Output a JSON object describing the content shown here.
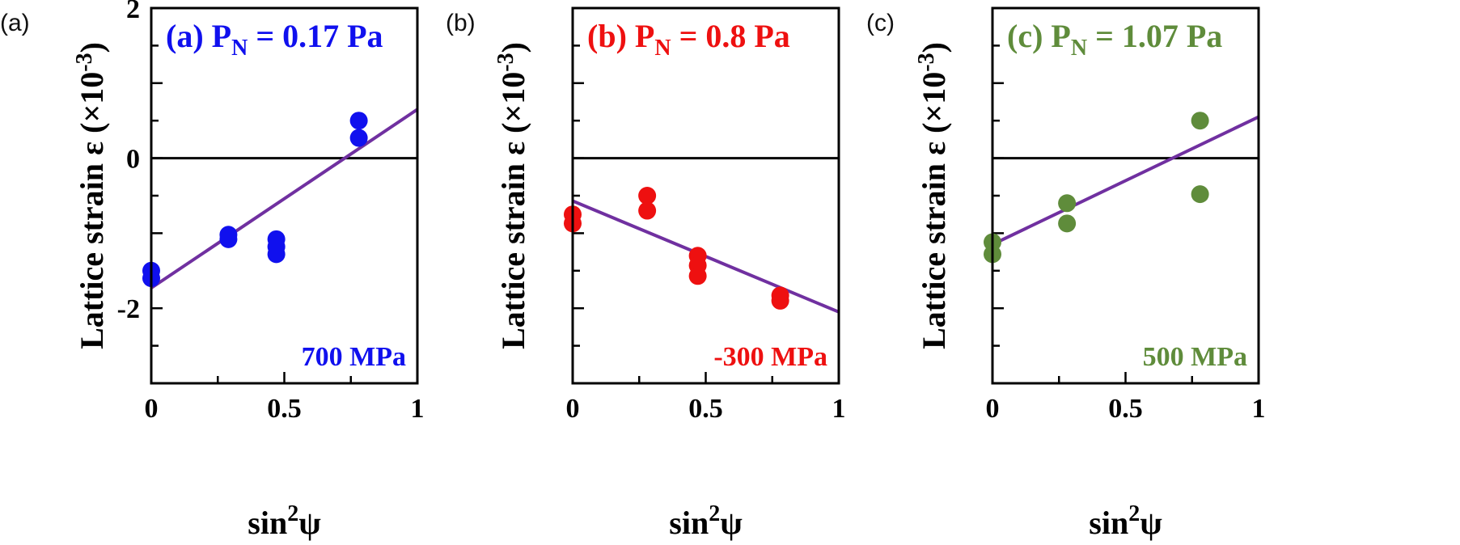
{
  "y_axis_label": "Lattice strain ε (×10",
  "y_axis_exponent": "-3",
  "y_axis_label_close": ")",
  "x_axis_label_prefix": "sin",
  "x_axis_label_exponent": "2",
  "x_axis_label_suffix": "ψ",
  "fit_line_color": "#7030a0",
  "chart_data": [
    {
      "type": "scatter",
      "panel_label": "(a)",
      "title_prefix": "(a) P",
      "title_subscript": "N",
      "title_suffix": " = 0.17 Pa",
      "stress_label": "700 MPa",
      "color": "#1010ee",
      "xlim": [
        0,
        1
      ],
      "ylim": [
        -3,
        2
      ],
      "x_ticks": [
        "0",
        "0.5",
        "1"
      ],
      "y_ticks": [
        "2",
        "0",
        "-2"
      ],
      "points": [
        {
          "x": 0.0,
          "y": -1.5
        },
        {
          "x": 0.0,
          "y": -1.6
        },
        {
          "x": 0.29,
          "y": -1.02
        },
        {
          "x": 0.29,
          "y": -1.08
        },
        {
          "x": 0.47,
          "y": -1.08
        },
        {
          "x": 0.47,
          "y": -1.18
        },
        {
          "x": 0.47,
          "y": -1.28
        },
        {
          "x": 0.78,
          "y": 0.5
        },
        {
          "x": 0.78,
          "y": 0.27
        }
      ],
      "fit_line": {
        "x": [
          0,
          1
        ],
        "y": [
          -1.73,
          0.65
        ]
      }
    },
    {
      "type": "scatter",
      "panel_label": "(b)",
      "title_prefix": "(b) P",
      "title_subscript": "N",
      "title_suffix": " = 0.8 Pa",
      "stress_label": "-300 MPa",
      "color": "#ee1010",
      "xlim": [
        0,
        1
      ],
      "ylim": [
        -3,
        2
      ],
      "x_ticks": [
        "0",
        "0.5",
        "1"
      ],
      "y_ticks": [],
      "points": [
        {
          "x": 0.0,
          "y": -0.75
        },
        {
          "x": 0.0,
          "y": -0.87
        },
        {
          "x": 0.28,
          "y": -0.5
        },
        {
          "x": 0.28,
          "y": -0.7
        },
        {
          "x": 0.47,
          "y": -1.3
        },
        {
          "x": 0.47,
          "y": -1.43
        },
        {
          "x": 0.47,
          "y": -1.57
        },
        {
          "x": 0.78,
          "y": -1.83
        },
        {
          "x": 0.78,
          "y": -1.9
        }
      ],
      "fit_line": {
        "x": [
          0,
          1
        ],
        "y": [
          -0.57,
          -2.05
        ]
      }
    },
    {
      "type": "scatter",
      "panel_label": "(c)",
      "title_prefix": "(c) P",
      "title_subscript": "N",
      "title_suffix": " = 1.07 Pa",
      "stress_label": "500 MPa",
      "color": "#5f8c3b",
      "xlim": [
        0,
        1
      ],
      "ylim": [
        -3,
        2
      ],
      "x_ticks": [
        "0",
        "0.5",
        "1"
      ],
      "y_ticks": [],
      "points": [
        {
          "x": 0.0,
          "y": -1.12
        },
        {
          "x": 0.0,
          "y": -1.28
        },
        {
          "x": 0.28,
          "y": -0.6
        },
        {
          "x": 0.28,
          "y": -0.87
        },
        {
          "x": 0.78,
          "y": 0.5
        },
        {
          "x": 0.78,
          "y": -0.48
        }
      ],
      "fit_line": {
        "x": [
          0,
          1
        ],
        "y": [
          -1.15,
          0.55
        ]
      }
    }
  ]
}
